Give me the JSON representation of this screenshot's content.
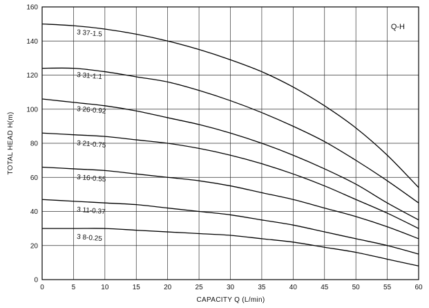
{
  "chart_data": {
    "type": "line",
    "title": "Q-H",
    "xlabel": "CAPACITY  Q (L/min)",
    "ylabel": "TOTAL HEAD  H(m)",
    "xlim": [
      0,
      60
    ],
    "ylim": [
      0,
      160
    ],
    "x_ticks": [
      0,
      5,
      10,
      15,
      20,
      25,
      30,
      35,
      40,
      45,
      50,
      55,
      60
    ],
    "y_ticks": [
      0,
      20,
      40,
      60,
      80,
      100,
      120,
      140,
      160
    ],
    "grid": true,
    "legend": "none",
    "series": [
      {
        "name": "3 37-1.5",
        "label_at": [
          5.5,
          144
        ],
        "x": [
          0,
          5,
          10,
          15,
          20,
          25,
          30,
          35,
          40,
          45,
          50,
          55,
          60
        ],
        "y": [
          150,
          149,
          147,
          144,
          140,
          135,
          129,
          122,
          113,
          102,
          89,
          73,
          54
        ]
      },
      {
        "name": "3 31-1.1",
        "label_at": [
          5.5,
          119
        ],
        "x": [
          0,
          5,
          10,
          15,
          20,
          25,
          30,
          35,
          40,
          45,
          50,
          55,
          60
        ],
        "y": [
          124,
          124,
          122,
          119,
          116,
          111,
          105,
          98,
          90,
          81,
          70,
          58,
          45
        ]
      },
      {
        "name": "3 26-0.92",
        "label_at": [
          5.5,
          99
        ],
        "x": [
          0,
          5,
          10,
          15,
          20,
          25,
          30,
          35,
          40,
          45,
          50,
          55,
          60
        ],
        "y": [
          106,
          104,
          102,
          99,
          95,
          91,
          86,
          80,
          73,
          65,
          56,
          45,
          35
        ]
      },
      {
        "name": "3 21-0.75",
        "label_at": [
          5.5,
          79
        ],
        "x": [
          0,
          5,
          10,
          15,
          20,
          25,
          30,
          35,
          40,
          45,
          50,
          55,
          60
        ],
        "y": [
          86,
          85,
          84,
          82,
          80,
          77,
          73,
          68,
          62,
          55,
          47,
          39,
          30
        ]
      },
      {
        "name": "3 16-0.55",
        "label_at": [
          5.5,
          59
        ],
        "x": [
          0,
          5,
          10,
          15,
          20,
          25,
          30,
          35,
          40,
          45,
          50,
          55,
          60
        ],
        "y": [
          66,
          65,
          64,
          62,
          60,
          58,
          55,
          51,
          47,
          42,
          37,
          31,
          24
        ]
      },
      {
        "name": "3 11-0.37",
        "label_at": [
          5.5,
          40
        ],
        "x": [
          0,
          5,
          10,
          15,
          20,
          25,
          30,
          35,
          40,
          45,
          50,
          55,
          60
        ],
        "y": [
          47,
          46,
          45,
          44,
          42,
          40,
          38,
          35,
          32,
          28,
          24,
          20,
          15
        ]
      },
      {
        "name": "3 8-0.25",
        "label_at": [
          5.5,
          24
        ],
        "x": [
          0,
          5,
          10,
          15,
          20,
          25,
          30,
          35,
          40,
          45,
          50,
          55,
          60
        ],
        "y": [
          30,
          30,
          30,
          29,
          28,
          27,
          26,
          24,
          22,
          19,
          16,
          12,
          8
        ]
      }
    ]
  }
}
